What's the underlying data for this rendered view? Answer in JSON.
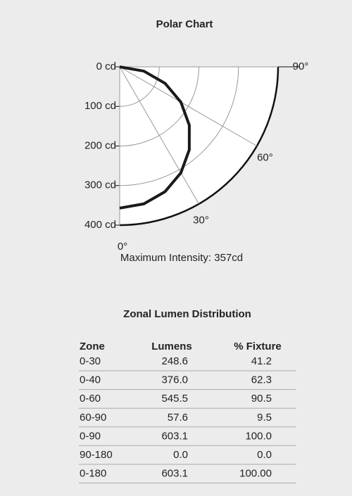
{
  "chart_data": {
    "type": "polar",
    "title": "Polar Chart",
    "annotation": "Maximum Intensity: 357cd",
    "rlim": [
      0,
      400
    ],
    "rticks": [
      {
        "value": 0,
        "label": "0 cd"
      },
      {
        "value": 100,
        "label": "100 cd"
      },
      {
        "value": 200,
        "label": "200 cd"
      },
      {
        "value": 300,
        "label": "300 cd"
      },
      {
        "value": 400,
        "label": "400 cd"
      }
    ],
    "thetalim": [
      0,
      90
    ],
    "thetaticks": [
      {
        "value": 0,
        "label": "0°"
      },
      {
        "value": 30,
        "label": "30°"
      },
      {
        "value": 60,
        "label": "60°"
      },
      {
        "value": 90,
        "label": "90°"
      }
    ],
    "series": [
      {
        "color": "#1a1a1a",
        "theta": [
          0,
          10,
          20,
          30,
          40,
          50,
          60,
          70,
          80,
          90
        ],
        "values": [
          357,
          351.6,
          335.5,
          309.2,
          273.5,
          229.5,
          178.5,
          122.1,
          62,
          0
        ]
      }
    ]
  },
  "table": {
    "title": "Zonal Lumen Distribution",
    "columns": [
      "Zone",
      "Lumens",
      "% Fixture"
    ],
    "rows": [
      [
        "0-30",
        "248.6",
        "41.2"
      ],
      [
        "0-40",
        "376.0",
        "62.3"
      ],
      [
        "0-60",
        "545.5",
        "90.5"
      ],
      [
        "60-90",
        "57.6",
        "9.5"
      ],
      [
        "0-90",
        "603.1",
        "100.0"
      ],
      [
        "90-180",
        "0.0",
        "0.0"
      ],
      [
        "0-180",
        "603.1",
        "100.00"
      ]
    ]
  }
}
